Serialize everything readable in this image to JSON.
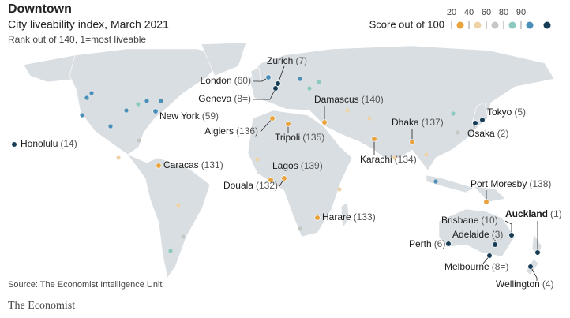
{
  "header": {
    "title": "Downtown",
    "subtitle": "City liveability index, March 2021",
    "note": "Rank out of 140, 1=most liveable"
  },
  "legend": {
    "title": "Score out of 100",
    "ticks": [
      20,
      40,
      60,
      80,
      90
    ],
    "colors": [
      "#e8a33d",
      "#efd3a8",
      "#c5c9c4",
      "#8cc9c1",
      "#4a8fb8",
      "#173c55"
    ]
  },
  "cities": [
    {
      "name": "Zurich",
      "rank": "(7)",
      "color": "#173c55"
    },
    {
      "name": "London",
      "rank": "(60)",
      "color": "#4a8fb8"
    },
    {
      "name": "Geneva",
      "rank": "(8=)",
      "color": "#173c55"
    },
    {
      "name": "Damascus",
      "rank": "(140)",
      "color": "#e8a33d"
    },
    {
      "name": "Algiers",
      "rank": "(136)",
      "color": "#e8a33d"
    },
    {
      "name": "Tripoli",
      "rank": "(135)",
      "color": "#e8a33d"
    },
    {
      "name": "New York",
      "rank": "(59)",
      "color": "#4a8fb8"
    },
    {
      "name": "Honolulu",
      "rank": "(14)",
      "color": "#173c55"
    },
    {
      "name": "Caracas",
      "rank": "(131)",
      "color": "#e8a33d"
    },
    {
      "name": "Lagos",
      "rank": "(139)",
      "color": "#e8a33d"
    },
    {
      "name": "Douala",
      "rank": "(132)",
      "color": "#e8a33d"
    },
    {
      "name": "Harare",
      "rank": "(133)",
      "color": "#e8a33d"
    },
    {
      "name": "Dhaka",
      "rank": "(137)",
      "color": "#e8a33d"
    },
    {
      "name": "Karachi",
      "rank": "(134)",
      "color": "#e8a33d"
    },
    {
      "name": "Tokyo",
      "rank": "(5)",
      "color": "#173c55"
    },
    {
      "name": "Osaka",
      "rank": "(2)",
      "color": "#173c55"
    },
    {
      "name": "Port Moresby",
      "rank": "(138)",
      "color": "#e8a33d"
    },
    {
      "name": "Auckland",
      "rank": "(1)",
      "color": "#173c55",
      "bold": true
    },
    {
      "name": "Brisbane",
      "rank": "(10)",
      "color": "#173c55"
    },
    {
      "name": "Adelaide",
      "rank": "(3)",
      "color": "#173c55"
    },
    {
      "name": "Perth",
      "rank": "(6)",
      "color": "#173c55"
    },
    {
      "name": "Melbourne",
      "rank": "(8=)",
      "color": "#173c55"
    },
    {
      "name": "Wellington",
      "rank": "(4)",
      "color": "#173c55"
    }
  ],
  "footer": {
    "source": "Source: The Economist Intelligence Unit",
    "brand": "The Economist"
  }
}
